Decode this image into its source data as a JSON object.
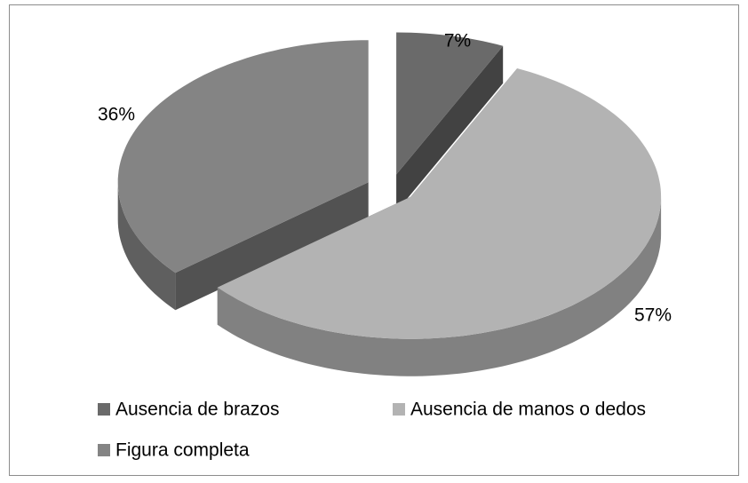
{
  "chart_data": {
    "type": "pie",
    "categories": [
      "Ausencia de brazos",
      "Ausencia de manos o dedos",
      "Figura completa"
    ],
    "values": [
      7,
      57,
      36
    ],
    "value_labels": [
      "7%",
      "57%",
      "36%"
    ],
    "colors": [
      "#6a6a6a",
      "#b3b3b3",
      "#848484"
    ],
    "legend": "bottom"
  }
}
